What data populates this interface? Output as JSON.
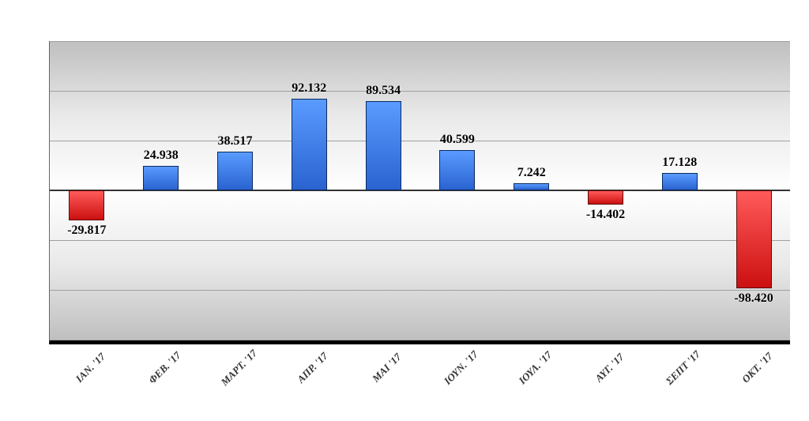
{
  "chart": {
    "type": "bar",
    "ylim": [
      -150000,
      150000
    ],
    "ytick_step": 50000,
    "categories": [
      "ΙΑΝ. '17",
      "ΦΕΒ. '17",
      "ΜΑΡΤ. '17",
      "ΑΠΡ. '17",
      "ΜΑΙ '17",
      "ΙΟΥΝ. '17",
      "ΙΟΥΛ. '17",
      "ΑΥΓ. '17",
      "ΣΕΠΤ '17",
      "ΟΚΤ. '17"
    ],
    "values": [
      -29817,
      24938,
      38517,
      92132,
      89534,
      40599,
      7242,
      -14402,
      17128,
      -98420
    ],
    "value_labels": [
      "-29.817",
      "24.938",
      "38.517",
      "92.132",
      "89.534",
      "40.599",
      "7.242",
      "-14.402",
      "17.128",
      "-98.420"
    ],
    "pos_color": "#2f6fd8",
    "neg_color": "#e01818",
    "background_gradient_top": "#bfbfbf",
    "background_gradient_mid": "#ffffff",
    "grid_color": "#a0a0a0",
    "axis_line_color": "#000000",
    "label_fontsize": 16,
    "xlabel_fontsize": 13,
    "bar_width_ratio": 0.48
  }
}
